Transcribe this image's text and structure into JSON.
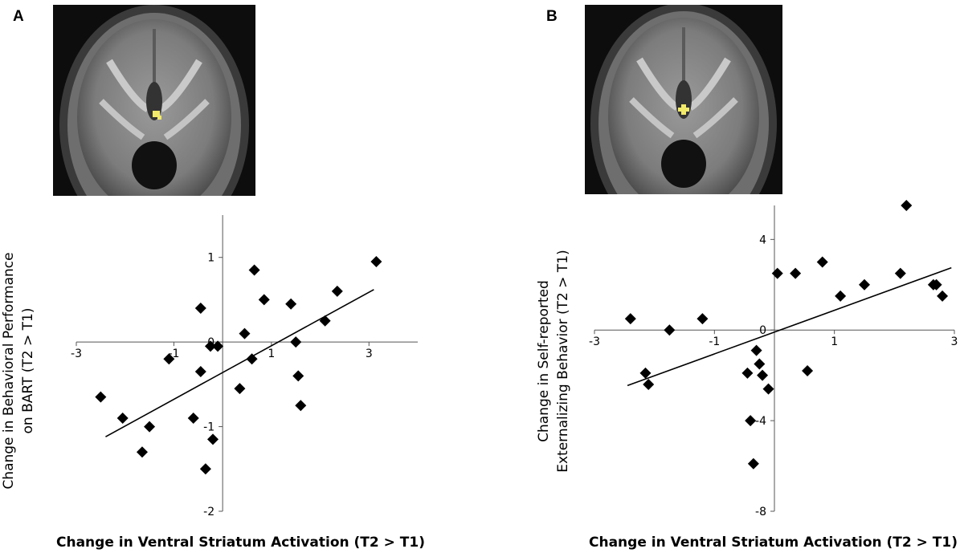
{
  "panels": [
    {
      "letter": "A",
      "ylabel_line1": "Change in Behavioral Performance",
      "ylabel_line2": "on BART (T2 > T1)",
      "xlabel": "Change in Ventral Striatum Activation (T2 > T1)",
      "marker": "square"
    },
    {
      "letter": "B",
      "ylabel_line1": "Change in Self-reported",
      "ylabel_line2": "Externalizing Behavior (T2 > T1)",
      "xlabel": "Change in Ventral Striatum Activation (T2 > T1)",
      "marker": "cross"
    }
  ],
  "colors": {
    "highlight": "#f2ea6a",
    "point": "#000000",
    "axis": "#555555"
  },
  "chart_data": [
    {
      "type": "scatter",
      "xlim": [
        -3,
        4
      ],
      "ylim": [
        -2,
        1.5
      ],
      "xticks": [
        -3,
        -1,
        1,
        3
      ],
      "yticks": [
        1,
        0,
        -1,
        -2
      ],
      "x": [
        -2.5,
        -2.05,
        -1.65,
        -1.5,
        -1.1,
        -0.6,
        -0.45,
        -0.35,
        -0.2,
        -0.1,
        0.35,
        0.45,
        0.6,
        0.65,
        0.85,
        1.4,
        1.5,
        1.55,
        1.6,
        2.1,
        2.35,
        3.15,
        -0.45,
        -0.25
      ],
      "y": [
        -0.65,
        -0.9,
        -1.3,
        -1.0,
        -0.2,
        -0.9,
        -0.35,
        -1.5,
        -1.15,
        -0.05,
        -0.55,
        0.1,
        -0.2,
        0.85,
        0.5,
        0.45,
        0.0,
        -0.4,
        -0.75,
        0.25,
        0.6,
        0.95,
        0.4,
        -0.05
      ],
      "trendline": {
        "x": [
          -2.4,
          3.1
        ],
        "y": [
          -1.12,
          0.62
        ]
      }
    },
    {
      "type": "scatter",
      "xlim": [
        -3,
        3
      ],
      "ylim": [
        -8,
        5.5
      ],
      "xticks": [
        -3,
        -1,
        1,
        3
      ],
      "yticks": [
        4,
        0,
        -4,
        -8
      ],
      "x": [
        -2.4,
        -2.15,
        -2.1,
        -1.75,
        -1.2,
        -0.45,
        -0.4,
        -0.35,
        -0.3,
        -0.25,
        -0.2,
        -0.1,
        0.05,
        0.35,
        0.55,
        0.8,
        1.1,
        1.5,
        2.1,
        2.2,
        2.65,
        2.7,
        2.8
      ],
      "y": [
        0.5,
        -1.9,
        -2.4,
        0.0,
        0.5,
        -1.9,
        -4.0,
        -5.9,
        -0.9,
        -1.5,
        -2.0,
        -2.6,
        2.5,
        2.5,
        -1.8,
        3.0,
        1.5,
        2.0,
        2.5,
        5.5,
        2.0,
        2.0,
        1.5
      ],
      "trendline": {
        "x": [
          -2.45,
          2.95
        ],
        "y": [
          -2.45,
          2.75
        ]
      }
    }
  ]
}
